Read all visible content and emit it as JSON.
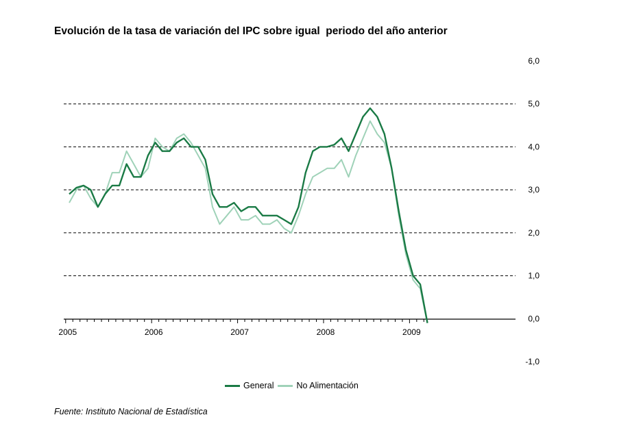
{
  "title": "Evolución de la tasa de variación del IPC sobre igual  periodo del año anterior",
  "source": "Fuente: Instituto Nacional de Estadística",
  "colors": {
    "general": "#1a7a45",
    "no_alimentacion": "#9fd2b8",
    "grid": "#000000"
  },
  "chart_data": {
    "type": "line",
    "title": "Evolución de la tasa de variación del IPC sobre igual  periodo del año anterior",
    "xlabel": "",
    "ylabel": "",
    "ylim": [
      -1.0,
      6.0
    ],
    "yticks": [
      "6,0",
      "5,0",
      "4,0",
      "3,0",
      "2,0",
      "1,0",
      "0,0",
      "-1,0"
    ],
    "ytick_values": [
      6,
      5,
      4,
      3,
      2,
      1,
      0,
      -1
    ],
    "xticks": [
      "2005",
      "2006",
      "2007",
      "2008",
      "2009"
    ],
    "x_start": "2005-01",
    "x_end": "2009-03",
    "months": [
      "2005-01",
      "2005-02",
      "2005-03",
      "2005-04",
      "2005-05",
      "2005-06",
      "2005-07",
      "2005-08",
      "2005-09",
      "2005-10",
      "2005-11",
      "2005-12",
      "2006-01",
      "2006-02",
      "2006-03",
      "2006-04",
      "2006-05",
      "2006-06",
      "2006-07",
      "2006-08",
      "2006-09",
      "2006-10",
      "2006-11",
      "2006-12",
      "2007-01",
      "2007-02",
      "2007-03",
      "2007-04",
      "2007-05",
      "2007-06",
      "2007-07",
      "2007-08",
      "2007-09",
      "2007-10",
      "2007-11",
      "2007-12",
      "2008-01",
      "2008-02",
      "2008-03",
      "2008-04",
      "2008-05",
      "2008-06",
      "2008-07",
      "2008-08",
      "2008-09",
      "2008-10",
      "2008-11",
      "2008-12",
      "2009-01",
      "2009-02",
      "2009-03"
    ],
    "grid": true,
    "legend_position": "bottom",
    "series": [
      {
        "name": "General",
        "values": [
          2.9,
          3.05,
          3.1,
          3.0,
          2.6,
          2.9,
          3.1,
          3.1,
          3.6,
          3.3,
          3.3,
          3.8,
          4.1,
          3.9,
          3.9,
          4.1,
          4.2,
          4.0,
          4.0,
          3.7,
          2.9,
          2.6,
          2.6,
          2.7,
          2.5,
          2.6,
          2.6,
          2.4,
          2.4,
          2.4,
          2.3,
          2.2,
          2.6,
          3.4,
          3.9,
          4.0,
          4.0,
          4.05,
          4.2,
          3.9,
          4.3,
          4.7,
          4.9,
          4.7,
          4.3,
          3.5,
          2.5,
          1.6,
          1.0,
          0.8,
          -0.1
        ]
      },
      {
        "name": "No Alimentación",
        "values": [
          2.7,
          3.0,
          3.1,
          2.8,
          2.6,
          2.9,
          3.4,
          3.4,
          3.9,
          3.6,
          3.3,
          3.5,
          4.2,
          4.0,
          3.9,
          4.2,
          4.3,
          4.1,
          3.8,
          3.5,
          2.6,
          2.2,
          2.4,
          2.6,
          2.3,
          2.3,
          2.4,
          2.2,
          2.2,
          2.3,
          2.1,
          2.0,
          2.4,
          2.9,
          3.3,
          3.4,
          3.5,
          3.5,
          3.7,
          3.3,
          3.8,
          4.2,
          4.6,
          4.3,
          4.1,
          3.5,
          2.4,
          1.5,
          0.9,
          0.7,
          -0.1
        ]
      }
    ]
  }
}
